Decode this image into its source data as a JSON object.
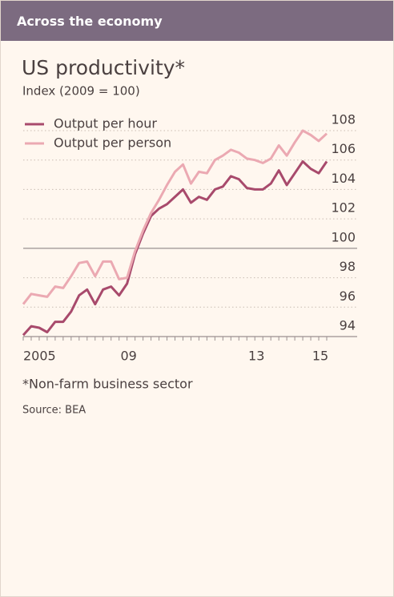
{
  "header": {
    "title": "Across the economy"
  },
  "chart_data": {
    "type": "line",
    "title": "US productivity*",
    "subtitle": "Index (2009 = 100)",
    "footnote": "*Non-farm business sector",
    "source": "Source: BEA",
    "categories": [
      "2005",
      null,
      null,
      null,
      null,
      null,
      null,
      null,
      null,
      null,
      null,
      null,
      null,
      "09",
      null,
      null,
      null,
      null,
      null,
      null,
      null,
      null,
      null,
      null,
      null,
      null,
      null,
      null,
      null,
      "13",
      null,
      null,
      null,
      null,
      null,
      null,
      null,
      "15",
      null
    ],
    "series": [
      {
        "name": "Output per hour",
        "color": "#a84a6c",
        "values": [
          94.1,
          94.7,
          94.6,
          94.3,
          95.0,
          95.0,
          95.7,
          96.8,
          97.2,
          96.2,
          97.2,
          97.4,
          96.8,
          97.6,
          99.6,
          101.0,
          102.2,
          102.7,
          103.0,
          103.5,
          104.0,
          103.1,
          103.5,
          103.3,
          104.0,
          104.2,
          104.9,
          104.7,
          104.1,
          104.0,
          104.0,
          104.4,
          105.3,
          104.3,
          105.1,
          105.9,
          105.4,
          105.1,
          105.9
        ]
      },
      {
        "name": "Output per person",
        "color": "#eba9b2",
        "values": [
          96.2,
          96.9,
          96.8,
          96.7,
          97.4,
          97.3,
          98.1,
          99.0,
          99.1,
          98.1,
          99.1,
          99.1,
          97.9,
          98.0,
          99.8,
          101.2,
          102.4,
          103.3,
          104.3,
          105.2,
          105.7,
          104.4,
          105.2,
          105.1,
          106.0,
          106.3,
          106.7,
          106.5,
          106.1,
          106.0,
          105.8,
          106.1,
          107.0,
          106.3,
          107.2,
          108.0,
          107.7,
          107.3,
          107.8
        ]
      }
    ],
    "ylim": [
      94,
      108
    ],
    "yticks": [
      94,
      96,
      98,
      100,
      102,
      104,
      106,
      108
    ],
    "reference_line": 100,
    "grid": true
  }
}
